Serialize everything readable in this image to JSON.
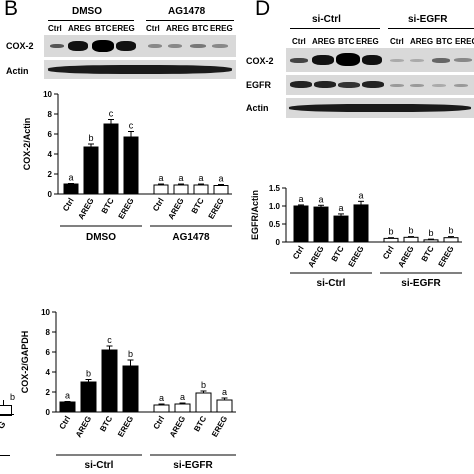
{
  "panel_b": {
    "letter": "B",
    "groups": [
      "DMSO",
      "AG1478"
    ],
    "lanes": [
      "Ctrl",
      "AREG",
      "BTC",
      "EREG",
      "Ctrl",
      "AREG",
      "BTC",
      "EREG"
    ],
    "blot_rows": [
      "COX-2",
      "Actin"
    ]
  },
  "panel_d": {
    "letter": "D",
    "groups": [
      "si-Ctrl",
      "si-EGFR"
    ],
    "lanes": [
      "Ctrl",
      "AREG",
      "BTC",
      "EREG",
      "Ctrl",
      "AREG",
      "BTC",
      "EREG"
    ],
    "blot_rows": [
      "COX-2",
      "EGFR",
      "Actin"
    ]
  },
  "left_partial": {
    "sig_label": "b",
    "axis_tail_label": "G"
  },
  "chart_data": [
    {
      "id": "b-cox2",
      "type": "bar",
      "ylabel": "COX-2/Actin",
      "ylim": [
        0,
        10
      ],
      "yticks": [
        0,
        2,
        4,
        6,
        8,
        10
      ],
      "categories": [
        "Ctrl",
        "AREG",
        "BTC",
        "EREG",
        "Ctrl",
        "AREG",
        "BTC",
        "EREG"
      ],
      "values": [
        1.0,
        4.7,
        7.0,
        5.7,
        0.9,
        0.9,
        0.9,
        0.85
      ],
      "errors": [
        0.05,
        0.3,
        0.45,
        0.55,
        0.1,
        0.1,
        0.1,
        0.1
      ],
      "sig": [
        "a",
        "b",
        "c",
        "c",
        "a",
        "a",
        "a",
        "a"
      ],
      "fill": [
        "#000000",
        "#000000",
        "#000000",
        "#000000",
        "#ffffff",
        "#ffffff",
        "#ffffff",
        "#ffffff"
      ],
      "groups": [
        {
          "label": "DMSO",
          "from": 0,
          "to": 3
        },
        {
          "label": "AG1478",
          "from": 4,
          "to": 7
        }
      ]
    },
    {
      "id": "d-egfr",
      "type": "bar",
      "ylabel": "EGFR/Actin",
      "ylim": [
        0,
        1.5
      ],
      "yticks": [
        0,
        0.5,
        1.0,
        1.5
      ],
      "ytick_labels": [
        "0",
        "0.5",
        "1.0",
        "1.5"
      ],
      "categories": [
        "Ctrl",
        "AREG",
        "BTC",
        "EREG",
        "Ctrl",
        "AREG",
        "BTC",
        "EREG"
      ],
      "values": [
        1.0,
        0.97,
        0.72,
        1.03,
        0.1,
        0.13,
        0.06,
        0.12
      ],
      "errors": [
        0.03,
        0.05,
        0.06,
        0.1,
        0.02,
        0.02,
        0.02,
        0.03
      ],
      "sig": [
        "a",
        "a",
        "a",
        "a",
        "b",
        "b",
        "b",
        "b"
      ],
      "fill": [
        "#000000",
        "#000000",
        "#000000",
        "#000000",
        "#ffffff",
        "#ffffff",
        "#ffffff",
        "#ffffff"
      ],
      "groups": [
        {
          "label": "si-Ctrl",
          "from": 0,
          "to": 3
        },
        {
          "label": "si-EGFR",
          "from": 4,
          "to": 7
        }
      ]
    },
    {
      "id": "gapdh",
      "type": "bar",
      "ylabel": "COX-2/GAPDH",
      "ylim": [
        0,
        10
      ],
      "yticks": [
        0,
        2,
        4,
        6,
        8,
        10
      ],
      "categories": [
        "Ctrl",
        "AREG",
        "BTC",
        "EREG",
        "Ctrl",
        "AREG",
        "BTC",
        "EREG"
      ],
      "values": [
        1.0,
        3.0,
        6.2,
        4.6,
        0.7,
        0.8,
        1.9,
        1.2
      ],
      "errors": [
        0.05,
        0.25,
        0.4,
        0.6,
        0.1,
        0.1,
        0.2,
        0.2
      ],
      "sig": [
        "a",
        "b",
        "c",
        "b",
        "a",
        "a",
        "b",
        "a"
      ],
      "fill": [
        "#000000",
        "#000000",
        "#000000",
        "#000000",
        "#ffffff",
        "#ffffff",
        "#ffffff",
        "#ffffff"
      ],
      "groups": [
        {
          "label": "si-Ctrl",
          "from": 0,
          "to": 3
        },
        {
          "label": "si-EGFR",
          "from": 4,
          "to": 7
        }
      ]
    }
  ]
}
